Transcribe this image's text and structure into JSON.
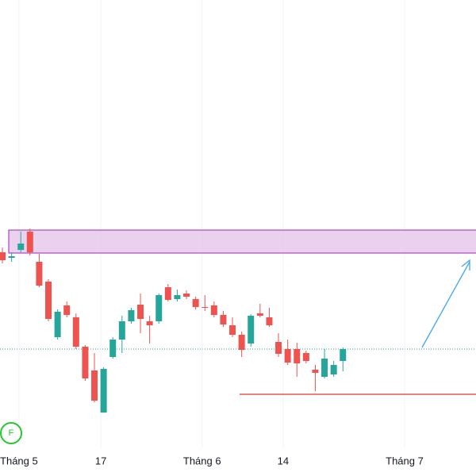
{
  "chart_data": {
    "type": "candlestick",
    "x": [
      0,
      1,
      2,
      3,
      4,
      5,
      6,
      7,
      8,
      9,
      10,
      11,
      12,
      13,
      14,
      15,
      16,
      17,
      18,
      19,
      20,
      21,
      22,
      23,
      24,
      25,
      26,
      27,
      28,
      29,
      30,
      31,
      32,
      33,
      34,
      35,
      36,
      37
    ],
    "open": [
      282,
      275,
      285,
      308,
      270,
      245,
      175,
      215,
      200,
      163,
      133,
      80,
      150,
      172,
      195,
      216,
      195,
      195,
      238,
      223,
      230,
      223,
      213,
      215,
      203,
      190,
      178,
      167,
      205,
      200,
      169,
      160,
      160,
      155,
      134,
      125,
      128,
      145
    ],
    "high": [
      288,
      282,
      308,
      312,
      280,
      248,
      210,
      220,
      205,
      165,
      155,
      137,
      175,
      202,
      212,
      230,
      202,
      230,
      242,
      235,
      234,
      226,
      228,
      220,
      208,
      200,
      182,
      204,
      217,
      212,
      180,
      172,
      168,
      158,
      140,
      160,
      145,
      162
    ],
    "low": [
      268,
      270,
      282,
      278,
      238,
      195,
      172,
      200,
      160,
      120,
      93,
      80,
      148,
      155,
      192,
      180,
      167,
      192,
      220,
      220,
      223,
      210,
      208,
      200,
      188,
      175,
      150,
      163,
      200,
      188,
      150,
      140,
      125,
      142,
      107,
      123,
      125,
      132
    ],
    "close": [
      272,
      277,
      293,
      282,
      240,
      198,
      207,
      203,
      163,
      123,
      95,
      135,
      172,
      195,
      209,
      198,
      190,
      228,
      222,
      228,
      226,
      213,
      212,
      203,
      191,
      178,
      159,
      202,
      202,
      190,
      154,
      143,
      142,
      145,
      130,
      148,
      140,
      160
    ],
    "up_color": "#26a69a",
    "down_color": "#ef5350",
    "xlim": [
      -0.26,
      51.46
    ],
    "ylim": [
      35,
      600
    ],
    "xticks": [
      {
        "value": 1.8,
        "label": "Tháng 5"
      },
      {
        "value": 10.7,
        "label": "17"
      },
      {
        "value": 21.7,
        "label": "Tháng 6"
      },
      {
        "value": 30.5,
        "label": "14"
      },
      {
        "value": 43.7,
        "label": "Tháng 7"
      }
    ],
    "grid": true
  }
}
